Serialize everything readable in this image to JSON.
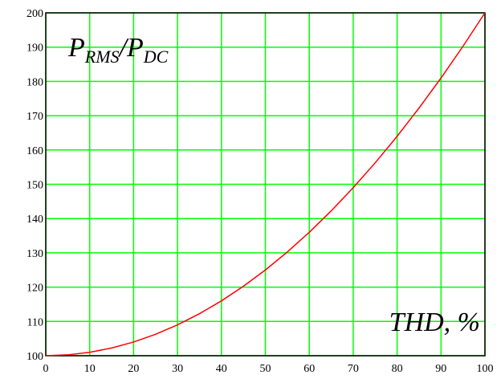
{
  "chart_data": {
    "type": "line",
    "y_label_parts": [
      "P",
      "RMS",
      "/P",
      "DC"
    ],
    "x_label": "THD, %",
    "x": [
      0,
      5,
      10,
      15,
      20,
      25,
      30,
      35,
      40,
      45,
      50,
      55,
      60,
      65,
      70,
      75,
      80,
      85,
      90,
      95,
      100
    ],
    "series": [
      {
        "color": "#ff0000",
        "values": [
          100,
          100.25,
          101,
          102.25,
          104,
          106.25,
          109,
          112.25,
          116,
          120.25,
          125,
          130.25,
          136,
          142.25,
          149,
          156.25,
          164,
          172.25,
          181,
          190.25,
          200
        ]
      }
    ],
    "xlim": [
      0,
      100
    ],
    "xticks": [
      0,
      10,
      20,
      30,
      40,
      50,
      60,
      70,
      80,
      90,
      100
    ],
    "ylim": [
      100,
      200
    ],
    "yticks": [
      100,
      110,
      120,
      130,
      140,
      150,
      160,
      170,
      180,
      190,
      200
    ],
    "grid": true,
    "grid_color": "#00ff00"
  }
}
